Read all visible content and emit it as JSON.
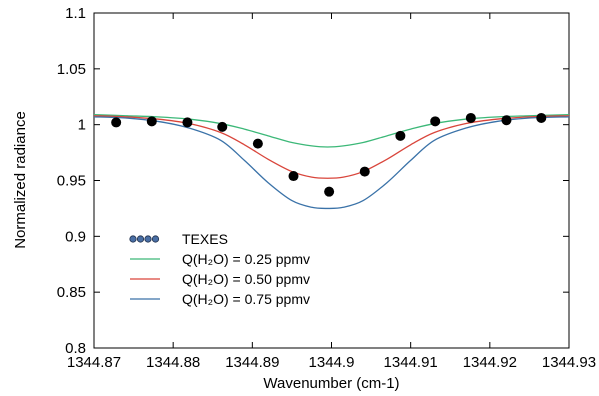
{
  "chart_data": {
    "type": "line",
    "xlabel": "Wavenumber (cm-1)",
    "ylabel": "Normalized radiance",
    "xlim": [
      1344.87,
      1344.93
    ],
    "ylim": [
      0.8,
      1.1
    ],
    "x_ticks": [
      "1344.87",
      "1344.88",
      "1344.89",
      "1344.9",
      "1344.91",
      "1344.92",
      "1344.93"
    ],
    "y_ticks": [
      "0.8",
      "0.85",
      "0.9",
      "0.95",
      "1",
      "1.05",
      "1.1"
    ],
    "grid": false,
    "legend_position": "lower-left",
    "series": [
      {
        "name": "TEXES",
        "kind": "scatter",
        "color": "#000000",
        "legend_color": "#4a6fa5",
        "x": [
          1344.8728,
          1344.8773,
          1344.8818,
          1344.8862,
          1344.8907,
          1344.8952,
          1344.8997,
          1344.9042,
          1344.9087,
          1344.9131,
          1344.9176,
          1344.9221,
          1344.9265
        ],
        "y": [
          1.002,
          1.003,
          1.002,
          0.998,
          0.983,
          0.954,
          0.94,
          0.958,
          0.99,
          1.003,
          1.006,
          1.004,
          1.006
        ]
      },
      {
        "name": "Q(H₂O) = 0.25 ppmv",
        "kind": "line",
        "color": "#3cb878",
        "x": [
          1344.87,
          1344.874,
          1344.878,
          1344.882,
          1344.886,
          1344.889,
          1344.892,
          1344.895,
          1344.8975,
          1344.8995,
          1344.9015,
          1344.904,
          1344.907,
          1344.91,
          1344.913,
          1344.917,
          1344.921,
          1344.925,
          1344.93
        ],
        "y": [
          1.009,
          1.008,
          1.007,
          1.005,
          1.001,
          0.996,
          0.99,
          0.984,
          0.981,
          0.98,
          0.981,
          0.984,
          0.99,
          0.996,
          1.001,
          1.005,
          1.007,
          1.008,
          1.009
        ]
      },
      {
        "name": "Q(H₂O) = 0.50 ppmv",
        "kind": "line",
        "color": "#d9453b",
        "x": [
          1344.87,
          1344.874,
          1344.878,
          1344.882,
          1344.886,
          1344.889,
          1344.892,
          1344.895,
          1344.8975,
          1344.8995,
          1344.9015,
          1344.904,
          1344.907,
          1344.91,
          1344.913,
          1344.917,
          1344.921,
          1344.925,
          1344.93
        ],
        "y": [
          1.008,
          1.007,
          1.005,
          1.001,
          0.993,
          0.982,
          0.969,
          0.958,
          0.953,
          0.952,
          0.953,
          0.958,
          0.969,
          0.982,
          0.993,
          1.001,
          1.005,
          1.007,
          1.008
        ]
      },
      {
        "name": "Q(H₂O) = 0.75 ppmv",
        "kind": "line",
        "color": "#3a72a8",
        "x": [
          1344.87,
          1344.874,
          1344.878,
          1344.882,
          1344.886,
          1344.889,
          1344.892,
          1344.895,
          1344.8975,
          1344.8995,
          1344.9015,
          1344.904,
          1344.907,
          1344.91,
          1344.913,
          1344.917,
          1344.921,
          1344.925,
          1344.93
        ],
        "y": [
          1.007,
          1.006,
          1.003,
          0.997,
          0.986,
          0.968,
          0.948,
          0.932,
          0.926,
          0.925,
          0.926,
          0.932,
          0.948,
          0.968,
          0.986,
          0.997,
          1.003,
          1.006,
          1.007
        ]
      }
    ]
  }
}
